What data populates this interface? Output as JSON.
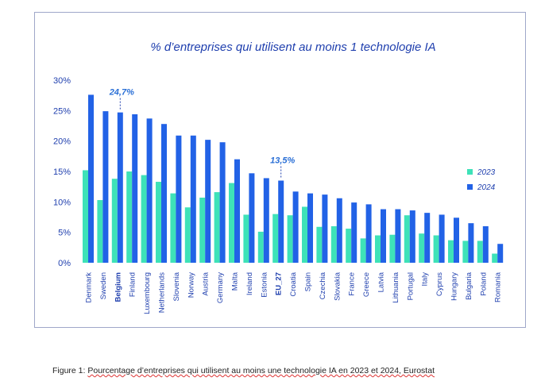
{
  "chart_data": {
    "type": "bar",
    "title": "% d’entreprises qui utilisent au moins 1 technologie IA",
    "categories": [
      "Denmark",
      "Sweden",
      "Belgium",
      "Finland",
      "Luxembourg",
      "Netherlands",
      "Slovenia",
      "Norway",
      "Austria",
      "Germany",
      "Malta",
      "Ireland",
      "Estonia",
      "EU_27",
      "Croatia",
      "Spain",
      "Czechia",
      "Slovakia",
      "France",
      "Greece",
      "Latvia",
      "Lithuania",
      "Portugal",
      "Italy",
      "Cyprus",
      "Hungary",
      "Bulgaria",
      "Poland",
      "Romania"
    ],
    "highlighted_categories": [
      "Belgium",
      "EU_27"
    ],
    "series": [
      {
        "name": "2023",
        "color": "#3ee2b8",
        "values": [
          15.2,
          10.3,
          13.8,
          15.0,
          14.4,
          13.3,
          11.4,
          9.1,
          10.7,
          11.6,
          13.1,
          7.9,
          5.1,
          8.0,
          7.8,
          9.2,
          5.9,
          6.0,
          5.6,
          4.0,
          4.5,
          4.6,
          7.8,
          4.8,
          4.5,
          3.7,
          3.6,
          3.6,
          1.5
        ]
      },
      {
        "name": "2024",
        "color": "#2262e6",
        "values": [
          27.6,
          24.9,
          24.7,
          24.4,
          23.7,
          22.8,
          20.9,
          20.9,
          20.2,
          19.8,
          17.0,
          14.7,
          13.9,
          13.5,
          11.7,
          11.4,
          11.2,
          10.6,
          9.9,
          9.6,
          8.8,
          8.8,
          8.6,
          8.2,
          7.9,
          7.4,
          6.5,
          6.0,
          3.1
        ]
      }
    ],
    "annotations": [
      {
        "category": "Belgium",
        "text": "24,7%"
      },
      {
        "category": "EU_27",
        "text": "13,5%"
      }
    ],
    "yticks": [
      "30%",
      "25%",
      "20%",
      "15%",
      "10%",
      "5%",
      "0%"
    ],
    "ylim": [
      0,
      30
    ],
    "legend_position": "right",
    "grid": false
  },
  "caption": {
    "prefix": "Figure 1: ",
    "text": "Pourcentage d’entreprises qui utilisent au moins une technologie IA en 2023 et 2024, Eurostat"
  }
}
